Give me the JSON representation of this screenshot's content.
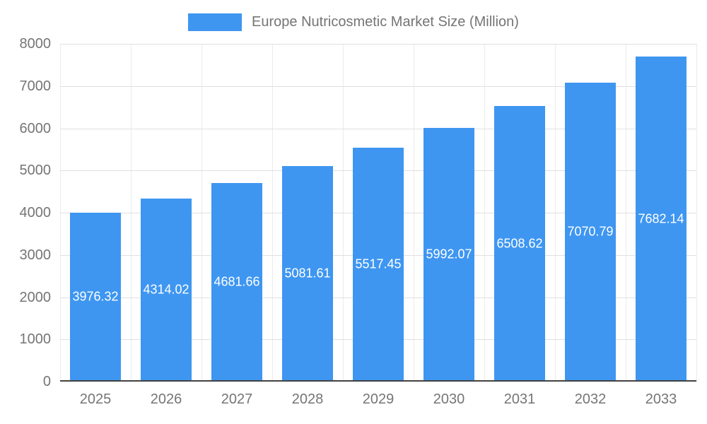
{
  "legend": {
    "label": "Europe Nutricosmetic Market Size (Million)"
  },
  "colors": {
    "bar": "#3e96f1",
    "value_label": "#ffffff",
    "tick_text": "#757575",
    "gridline": "#e0e0e0",
    "baseline": "#424242",
    "background": "#ffffff"
  },
  "chart_data": {
    "type": "bar",
    "title": "Europe Nutricosmetic Market Size (Million)",
    "categories": [
      "2025",
      "2026",
      "2027",
      "2028",
      "2029",
      "2030",
      "2031",
      "2032",
      "2033"
    ],
    "values": [
      3976.32,
      4314.02,
      4681.66,
      5081.61,
      5517.45,
      5992.07,
      6508.62,
      7070.79,
      7682.14
    ],
    "xlabel": "",
    "ylabel": "",
    "ylim": [
      0,
      8000
    ],
    "ytick_step": 1000,
    "yticks": [
      0,
      1000,
      2000,
      3000,
      4000,
      5000,
      6000,
      7000,
      8000
    ],
    "grid": true,
    "legend_position": "top",
    "value_labels_shown": true,
    "value_label_position": "center-of-bar"
  }
}
